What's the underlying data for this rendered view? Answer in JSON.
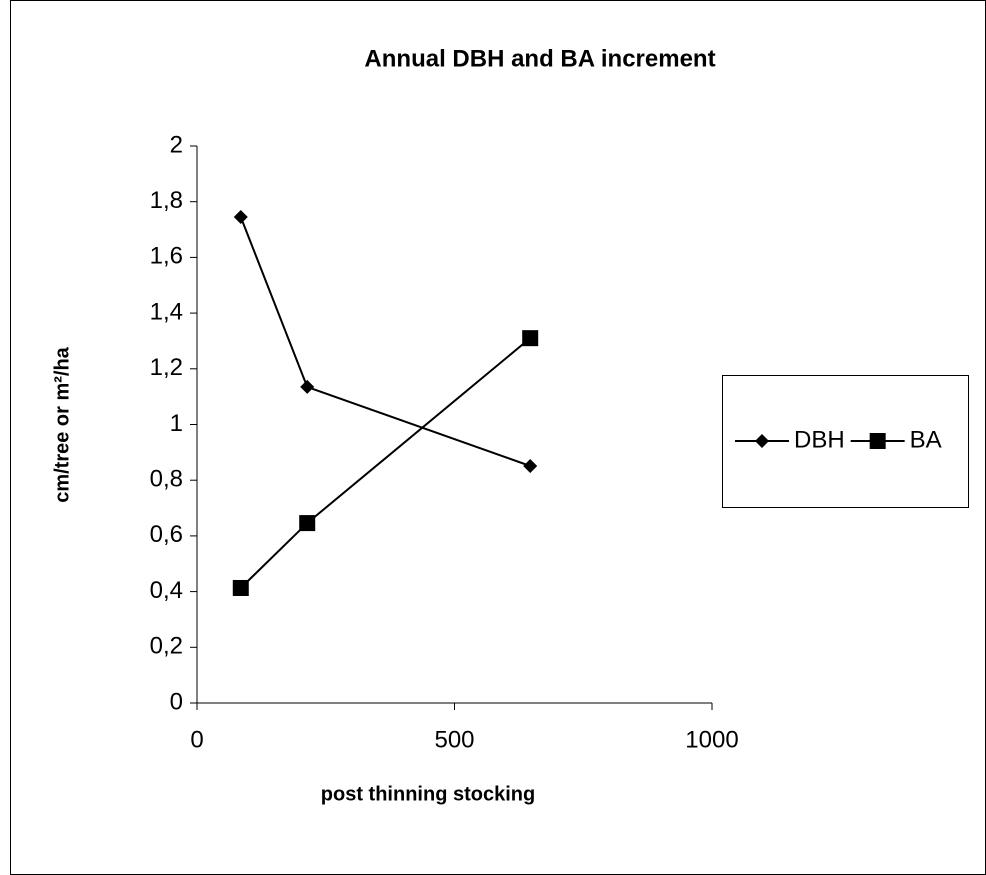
{
  "chart_data": {
    "type": "line",
    "title": "Annual DBH and BA increment",
    "x_label": "post thinning stocking",
    "y_label": "cm/tree or m²/ha",
    "xlim": [
      0,
      1000
    ],
    "xticks": [
      0,
      500,
      1000
    ],
    "ylim": [
      0,
      2
    ],
    "yticks": [
      0,
      {
        "value": 0.2,
        "label": "0,2"
      },
      {
        "value": 0.4,
        "label": "0,4"
      },
      {
        "value": 0.6,
        "label": "0,6"
      },
      {
        "value": 0.8,
        "label": "0,8"
      },
      1,
      {
        "value": 1.2,
        "label": "1,2"
      },
      {
        "value": 1.4,
        "label": "1,4"
      },
      {
        "value": 1.6,
        "label": "1,6"
      },
      {
        "value": 1.8,
        "label": "1,8"
      },
      2
    ],
    "legend": "right",
    "series": [
      {
        "name": "DBH",
        "color": "#000000",
        "marker": "diamond",
        "x": [
          85,
          214,
          647
        ],
        "values": [
          1.745,
          1.135,
          0.851
        ]
      },
      {
        "name": "BA",
        "color": "#000000",
        "marker": "square",
        "x": [
          85,
          214,
          647
        ],
        "values": [
          0.413,
          0.646,
          1.31
        ]
      }
    ]
  }
}
